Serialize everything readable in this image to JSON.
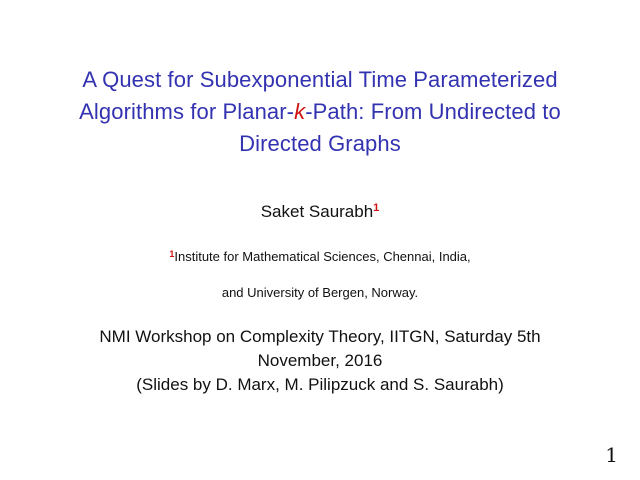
{
  "slide": {
    "title": {
      "line1": "A Quest for Subexponential Time Parameterized",
      "line2_before_k": "Algorithms for Planar-",
      "k": "k",
      "line2_after_k": "-Path: From Undirected to",
      "line3": "Directed Graphs"
    },
    "author": {
      "name": "Saket Saurabh",
      "footnote_mark": "1"
    },
    "institute": {
      "footnote_mark": "1",
      "line1": "Institute for Mathematical Sciences, Chennai, India,",
      "line2": "and University of Bergen, Norway."
    },
    "event": {
      "line1": "NMI Workshop on Complexity Theory, IITGN, Saturday 5th",
      "line2": "November, 2016",
      "line3": "(Slides by D. Marx, M. Pilipzuck and S. Saurabh)"
    },
    "page_number": "1",
    "colors": {
      "title_blue": "#3333B2",
      "alert_red": "#CC1414",
      "body_black": "#111111"
    }
  }
}
